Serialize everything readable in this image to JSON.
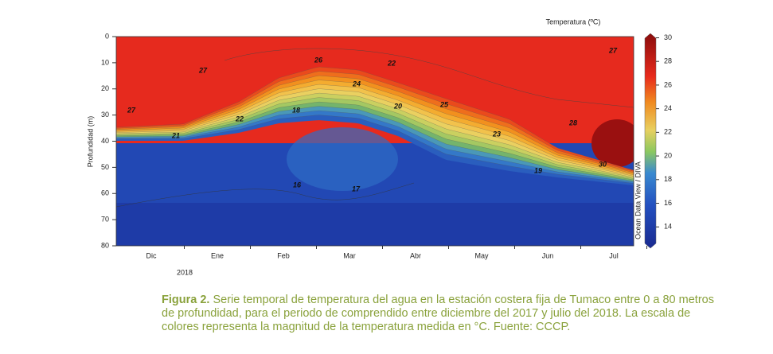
{
  "chart_data": {
    "type": "contour",
    "colorbar_title": "Temperatura (ºC)",
    "ylabel": "Profundidad (m)",
    "ylim": [
      0,
      80
    ],
    "yticks": [
      0,
      10,
      20,
      30,
      40,
      50,
      60,
      70,
      80
    ],
    "categories": [
      "Dic",
      "Ene",
      "Feb",
      "Mar",
      "Abr",
      "May",
      "Jun",
      "Jul"
    ],
    "year": "2018",
    "clim": [
      12.4,
      30.1
    ],
    "cticks": [
      14,
      16,
      18,
      20,
      22,
      24,
      26,
      28,
      30
    ],
    "contour_labels": [
      27,
      26,
      22,
      27,
      24,
      18,
      22,
      21,
      20,
      25,
      23,
      28,
      19,
      30,
      16,
      17,
      27
    ],
    "credit": "Ocean Data View / DIVA"
  },
  "caption": {
    "label": "Figura 2.",
    "text": " Serie temporal de temperatura del agua en la estación costera fija de Tumaco entre 0 a 80 metros de profundidad, para el periodo de comprendido entre diciembre del 2017 y julio del 2018. La escala de colores representa la magnitud de la temperatura medida en °C. Fuente: CCCP."
  }
}
